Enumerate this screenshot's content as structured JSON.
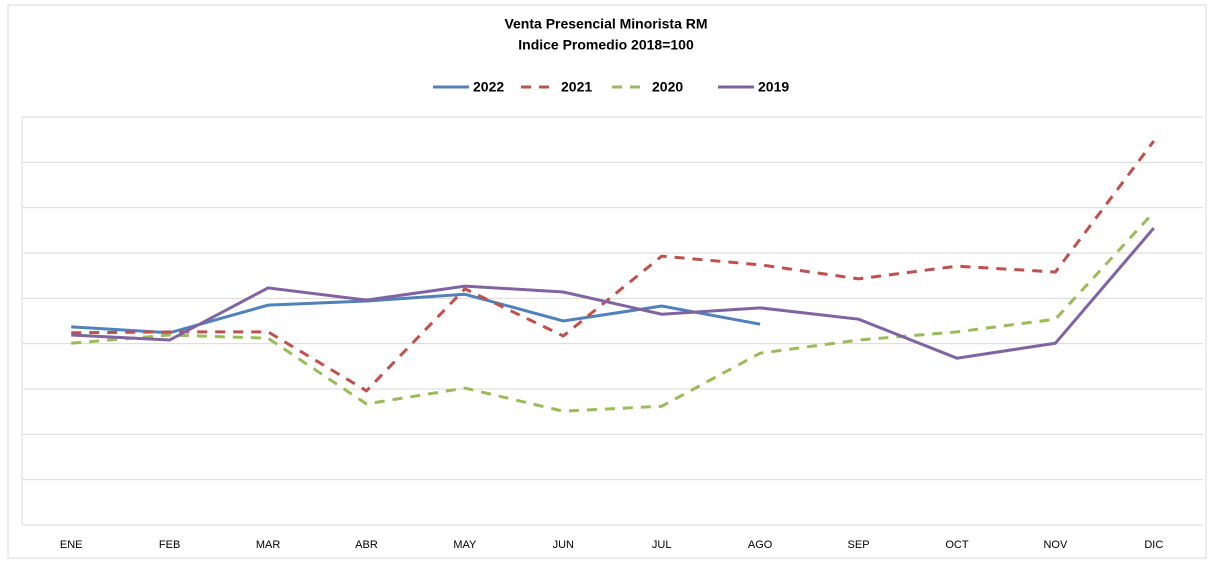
{
  "chart_data": {
    "type": "line",
    "title": "Venta Presencial Minorista RM",
    "subtitle": "Indice Promedio 2018=100",
    "categories": [
      "ENE",
      "FEB",
      "MAR",
      "ABR",
      "MAY",
      "JUN",
      "JUL",
      "AGO",
      "SEP",
      "OCT",
      "NOV",
      "DIC"
    ],
    "series": [
      {
        "name": "2022",
        "color": "#4f81bd",
        "dashed": false,
        "values": [
          103.7,
          102.4,
          108.5,
          109.4,
          110.9,
          105.0,
          108.3,
          104.3,
          null,
          null,
          null,
          null
        ]
      },
      {
        "name": "2021",
        "color": "#c0504d",
        "dashed": true,
        "values": [
          102.4,
          102.6,
          102.6,
          89.6,
          112.1,
          101.7,
          119.3,
          117.4,
          114.3,
          117.1,
          115.8,
          144.7
        ]
      },
      {
        "name": "2020",
        "color": "#9bbb59",
        "dashed": true,
        "values": [
          100.1,
          101.9,
          101.2,
          86.7,
          90.2,
          85.1,
          86.2,
          97.9,
          100.8,
          102.6,
          105.4,
          129.0
        ]
      },
      {
        "name": "2019",
        "color": "#8064a2",
        "dashed": false,
        "values": [
          101.9,
          100.8,
          112.3,
          109.6,
          112.7,
          111.4,
          106.5,
          107.9,
          105.4,
          96.8,
          100.1,
          125.5
        ]
      }
    ],
    "ylim": [
      60,
      150
    ],
    "yticks": [
      60,
      70,
      80,
      90,
      100,
      110,
      120,
      130,
      140,
      150
    ],
    "grid": true,
    "legend": "top"
  }
}
